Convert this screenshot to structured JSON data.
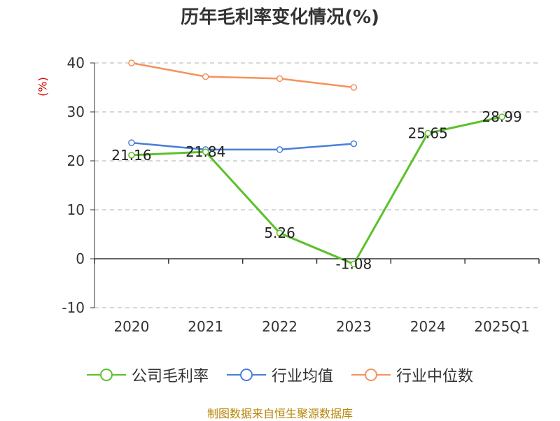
{
  "chart_data": {
    "type": "line",
    "title": "历年毛利率变化情况(%)",
    "ylabel": "(%)",
    "xlabel": "",
    "categories": [
      "2020",
      "2021",
      "2022",
      "2023",
      "2024",
      "2025Q1"
    ],
    "ylim": [
      -10,
      40
    ],
    "yticks": [
      -10,
      0,
      10,
      20,
      30,
      40
    ],
    "grid": true,
    "legend_position": "bottom",
    "series": [
      {
        "name": "公司毛利率",
        "color": "#5bc12a",
        "values": [
          21.16,
          21.84,
          5.26,
          -1.08,
          25.65,
          28.99
        ],
        "labels": [
          "21.16",
          "21.84",
          "5.26",
          "-1.08",
          "25.65",
          "28.99"
        ]
      },
      {
        "name": "行业均值",
        "color": "#4a7fd8",
        "values": [
          23.7,
          22.3,
          22.3,
          23.5,
          null,
          null
        ],
        "labels": []
      },
      {
        "name": "行业中位数",
        "color": "#f5925c",
        "values": [
          40.0,
          37.2,
          36.8,
          35.0,
          null,
          null
        ],
        "labels": []
      }
    ]
  },
  "legend": {
    "items": [
      "公司毛利率",
      "行业均值",
      "行业中位数"
    ]
  },
  "source_text": "制图数据来自恒生聚源数据库"
}
